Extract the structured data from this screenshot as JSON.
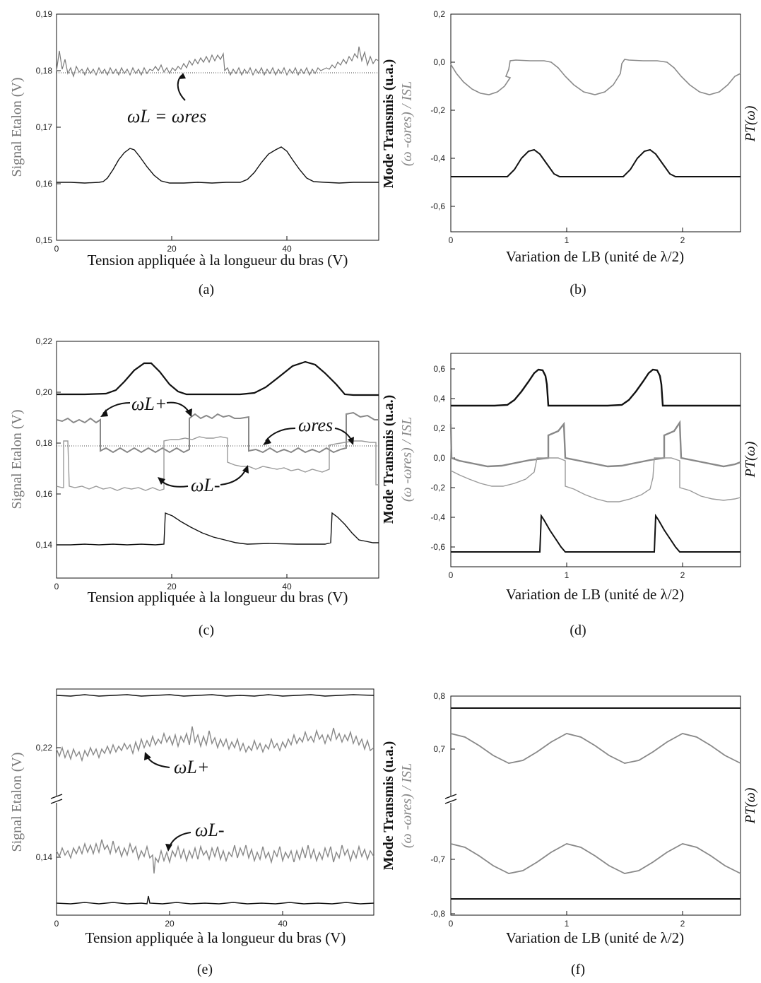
{
  "figure": {
    "panels": [
      {
        "caption": "(a)",
        "ylabel": "Signal Etalon (V)",
        "xlabel": "Tension appliquée à la longueur du bras (V)"
      },
      {
        "caption": "(b)",
        "ylabel_left": "Mode Transmis (u.a.)",
        "ylabel_left2": "(ω -ωres) / ISL",
        "ylabel_right": "PT(ω)",
        "xlabel": "Variation de LB (unité de λ/2)"
      },
      {
        "caption": "(c)",
        "ylabel": "Signal Etalon (V)",
        "xlabel": "Tension appliquée à la longueur du bras (V)"
      },
      {
        "caption": "(d)",
        "ylabel_left": "Mode Transmis (u.a.)",
        "ylabel_left2": "(ω -ωres) / ISL",
        "ylabel_right": "PT(ω)",
        "xlabel": "Variation de LB (unité de λ/2)"
      },
      {
        "caption": "(e)",
        "ylabel": "Signal Etalon (V)",
        "xlabel": "Tension appliquée à la longueur du bras (V)"
      },
      {
        "caption": "(f)",
        "ylabel_left": "Mode Transmis (u.a.)",
        "ylabel_left2": "(ω -ωres) / ISL",
        "ylabel_right": "PT(ω)",
        "xlabel": "Variation de LB (unité de λ/2)"
      }
    ],
    "annotations": {
      "a": [
        "ωL = ωres"
      ],
      "c": [
        "ωL+",
        "ωres",
        "ωL-"
      ],
      "e": [
        "ωL+",
        "ωL-"
      ]
    }
  },
  "chart_data": [
    {
      "type": "line",
      "panel": "a",
      "xlabel": "Tension appliquée à la longueur du bras (V)",
      "ylabel": "Signal Etalon (V)",
      "xlim": [
        0,
        56
      ],
      "ylim": [
        0.15,
        0.19
      ],
      "xticks": [
        "0",
        "20",
        "40"
      ],
      "yticks": [
        "0,15",
        "0,16",
        "0,17",
        "0,18",
        "0,19"
      ],
      "series": [
        {
          "color": "#7a7a7a",
          "noisy": true,
          "x": [
            0,
            1,
            2,
            3,
            10,
            20,
            24,
            29,
            29.5,
            45,
            52,
            53,
            56
          ],
          "y": [
            0.1795,
            0.183,
            0.1805,
            0.1795,
            0.1795,
            0.1795,
            0.1815,
            0.1825,
            0.1795,
            0.1795,
            0.1825,
            0.1805,
            0.1805
          ]
        },
        {
          "color": "#111111",
          "x": [
            0,
            8,
            11,
            13.5,
            16,
            19,
            34,
            38,
            41,
            44,
            47,
            56
          ],
          "y": [
            0.16,
            0.16,
            0.1635,
            0.166,
            0.164,
            0.16,
            0.16,
            0.164,
            0.1665,
            0.164,
            0.16,
            0.16
          ]
        }
      ],
      "hlines": [
        {
          "y": 0.1792,
          "style": "dotted"
        }
      ]
    },
    {
      "type": "line",
      "panel": "b",
      "xlabel": "Variation de LB (unité de λ/2)",
      "xlim": [
        0,
        2.5
      ],
      "ylim": [
        -0.7,
        0.2
      ],
      "xticks": [
        "0",
        "1",
        "2"
      ],
      "yticks": [
        "-0,6",
        "-0,4",
        "-0,2",
        "0,0",
        "0,2"
      ],
      "series": [
        {
          "color": "#8a8a8a",
          "x": [
            0,
            0.12,
            0.25,
            0.4,
            0.5,
            0.51,
            0.6,
            0.85,
            0.95,
            1.12,
            1.25,
            1.4,
            1.5,
            1.51,
            1.6,
            1.85,
            1.95,
            2.12,
            2.25,
            2.4,
            2.5
          ],
          "y": [
            -0.01,
            -0.1,
            -0.14,
            -0.1,
            -0.02,
            0.01,
            0.0,
            0.0,
            -0.02,
            -0.1,
            -0.14,
            -0.1,
            -0.02,
            0.01,
            0.0,
            0.0,
            -0.02,
            -0.1,
            -0.14,
            -0.1,
            -0.05
          ]
        },
        {
          "color": "#111111",
          "x": [
            0,
            0.5,
            0.62,
            0.75,
            0.88,
            1.0,
            1.5,
            1.62,
            1.75,
            1.88,
            2.0,
            2.5
          ],
          "y": [
            -0.48,
            -0.48,
            -0.42,
            -0.36,
            -0.42,
            -0.48,
            -0.48,
            -0.42,
            -0.36,
            -0.42,
            -0.48,
            -0.48
          ]
        }
      ]
    },
    {
      "type": "line",
      "panel": "c",
      "xlabel": "Tension appliquée à la longueur du bras (V)",
      "ylabel": "Signal Etalon (V)",
      "xlim": [
        0,
        56
      ],
      "ylim": [
        0.13,
        0.22
      ],
      "xticks": [
        "0",
        "20",
        "40"
      ],
      "yticks": [
        "0,14",
        "0,16",
        "0,18",
        "0,20",
        "0,22"
      ],
      "series": [
        {
          "color": "#111111",
          "x": [
            0,
            10,
            13,
            16.5,
            20,
            23,
            35,
            40,
            46,
            48,
            50,
            50.5,
            56
          ],
          "y": [
            0.199,
            0.199,
            0.204,
            0.212,
            0.206,
            0.199,
            0.199,
            0.207,
            0.212,
            0.208,
            0.2,
            0.199,
            0.199
          ]
        },
        {
          "color": "#888888",
          "noisy": true,
          "x": [
            0,
            7.2,
            7.3,
            22.5,
            22.6,
            33,
            33.1,
            50.5,
            50.6,
            56
          ],
          "y": [
            0.189,
            0.189,
            0.177,
            0.177,
            0.189,
            0.189,
            0.177,
            0.177,
            0.191,
            0.188
          ]
        },
        {
          "color": "#9a9a9a",
          "noisy": true,
          "x": [
            0,
            1.2,
            1.3,
            1.8,
            1.9,
            18.8,
            18.9,
            29.8,
            29.9,
            47.5,
            47.6,
            55.5
          ],
          "y": [
            0.162,
            0.162,
            0.181,
            0.181,
            0.162,
            0.16,
            0.181,
            0.181,
            0.163,
            0.16,
            0.181,
            0.181
          ]
        },
        {
          "color": "#111111",
          "x": [
            0,
            18.7,
            19,
            22,
            26,
            30,
            33,
            47.5,
            47.9,
            50,
            52,
            56
          ],
          "y": [
            0.14,
            0.14,
            0.152,
            0.149,
            0.145,
            0.142,
            0.141,
            0.141,
            0.152,
            0.148,
            0.142,
            0.141
          ]
        }
      ],
      "hlines": [
        {
          "y": 0.179,
          "style": "dotted"
        }
      ]
    },
    {
      "type": "line",
      "panel": "d",
      "xlabel": "Variation de LB (unité de λ/2)",
      "xlim": [
        0,
        2.5
      ],
      "ylim": [
        -0.7,
        0.7
      ],
      "xticks": [
        "0",
        "1",
        "2"
      ],
      "yticks": [
        "-0,6",
        "-0,4",
        "-0,2",
        "0,0",
        "0,2",
        "0,4",
        "0,6"
      ],
      "series": [
        {
          "color": "#111111",
          "x": [
            0,
            0.5,
            0.62,
            0.75,
            0.8,
            0.83,
            0.84,
            2.5
          ],
          "y": [
            0.34,
            0.34,
            0.42,
            0.57,
            0.58,
            0.55,
            0.34,
            0.34
          ],
          "repeat_period": 1.0
        },
        {
          "color": "#888888",
          "x": [
            0,
            0.01,
            0.02,
            0.2,
            0.35,
            0.55,
            0.75,
            0.85,
            0.86,
            0.98,
            0.99,
            1.2,
            1.35,
            1.55,
            1.75,
            1.85,
            1.86,
            1.98,
            1.99,
            2.2,
            2.35,
            2.5
          ],
          "y": [
            0.22,
            0.0,
            -0.02,
            -0.04,
            -0.05,
            -0.04,
            -0.01,
            0.0,
            0.1,
            0.22,
            -0.02,
            -0.04,
            -0.05,
            -0.04,
            -0.01,
            0.0,
            0.1,
            0.22,
            -0.02,
            -0.04,
            -0.05,
            -0.03
          ]
        },
        {
          "color": "#9a9a9a",
          "x": [
            0,
            0.2,
            0.4,
            0.6,
            0.76,
            0.77,
            0.98,
            0.99,
            1.2,
            1.4,
            1.6,
            1.76,
            1.77,
            1.98,
            1.99,
            2.2,
            2.4,
            2.5
          ],
          "y": [
            -0.25,
            -0.29,
            -0.33,
            -0.31,
            -0.25,
            0.0,
            0.0,
            -0.25,
            -0.29,
            -0.33,
            -0.31,
            -0.25,
            0.0,
            0.0,
            -0.25,
            -0.29,
            -0.33,
            -0.32
          ]
        },
        {
          "color": "#111111",
          "x": [
            0,
            0.77,
            0.78,
            0.83,
            0.88,
            0.95,
            2.5
          ],
          "y": [
            -0.63,
            -0.63,
            -0.4,
            -0.47,
            -0.56,
            -0.63,
            -0.63
          ],
          "repeat_period": 1.0
        }
      ]
    },
    {
      "type": "line",
      "panel": "e",
      "xlabel": "Tension appliquée à la longueur du bras (V)",
      "ylabel": "Signal Etalon (V)",
      "xlim": [
        0,
        56
      ],
      "broken_axis": true,
      "xticks": [
        "0",
        "20",
        "40"
      ],
      "yticks": [
        "0,14",
        "0,22"
      ],
      "series": [
        {
          "color": "#111111",
          "noisy": true,
          "level": "top-flat"
        },
        {
          "color": "#888888",
          "noisy": true,
          "label": "ωL+",
          "x": [
            0,
            6,
            12,
            18,
            24,
            30,
            36,
            42,
            48,
            52,
            56
          ],
          "y": [
            0.218,
            0.218,
            0.219,
            0.221,
            0.222,
            0.221,
            0.219,
            0.22,
            0.222,
            0.221,
            0.219
          ]
        },
        {
          "color": "#888888",
          "noisy": true,
          "label": "ωL-",
          "x": [
            0,
            6,
            12,
            18,
            24,
            30,
            36,
            42,
            48,
            56
          ],
          "y": [
            0.138,
            0.139,
            0.14,
            0.138,
            0.137,
            0.136,
            0.135,
            0.135,
            0.136,
            0.136
          ]
        },
        {
          "color": "#111111",
          "noisy": true,
          "level": "bottom-flat"
        }
      ]
    },
    {
      "type": "line",
      "panel": "f",
      "xlabel": "Variation de LB (unité de λ/2)",
      "xlim": [
        0,
        2.5
      ],
      "broken_axis": true,
      "xticks": [
        "0",
        "1",
        "2"
      ],
      "yticks": [
        "-0,8",
        "-0,7",
        "0,7",
        "0,8"
      ],
      "series": [
        {
          "color": "#111111",
          "x": [
            0,
            2.5
          ],
          "y": [
            0.775,
            0.775
          ]
        },
        {
          "color": "#888888",
          "shape": "cosine",
          "center": 0.7,
          "amplitude": 0.03,
          "period": 1.0
        },
        {
          "color": "#888888",
          "shape": "cosine",
          "center": -0.7,
          "amplitude": 0.03,
          "period": 1.0
        },
        {
          "color": "#111111",
          "x": [
            0,
            2.5
          ],
          "y": [
            -0.775,
            -0.775
          ]
        }
      ]
    }
  ]
}
